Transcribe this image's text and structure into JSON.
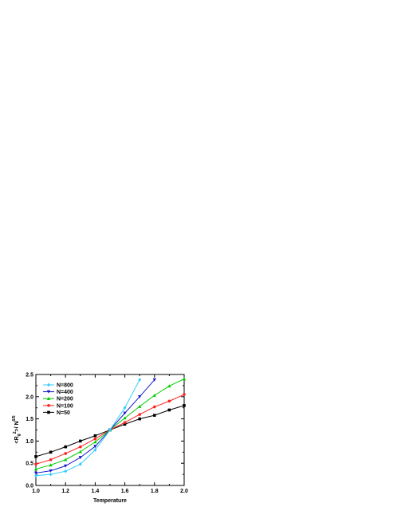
{
  "chart_data": {
    "type": "line",
    "title": "",
    "xlabel": "Temperature",
    "ylabel": "<R_g^2>/N^{6/5}",
    "ylabel_parts": {
      "open": "<R",
      "sub": "g",
      "sup1": "2",
      "mid": ">/ N",
      "sup2": "6/5"
    },
    "xlim": [
      1.0,
      2.0
    ],
    "ylim": [
      0.0,
      2.5
    ],
    "xticks": [
      "1.0",
      "1.2",
      "1.4",
      "1.6",
      "1.8",
      "2.0"
    ],
    "yticks": [
      "0.0",
      "0.5",
      "1.0",
      "1.5",
      "2.0",
      "2.5"
    ],
    "grid": false,
    "legend_position": "top-left",
    "series": [
      {
        "name": "N=800",
        "color": "#33ccff",
        "marker": "diamond",
        "x": [
          1.0,
          1.1,
          1.2,
          1.3,
          1.4,
          1.5,
          1.6,
          1.7
        ],
        "y": [
          0.22,
          0.25,
          0.32,
          0.48,
          0.8,
          1.25,
          1.75,
          2.38
        ]
      },
      {
        "name": "N=400",
        "color": "#1a1acc",
        "marker": "triangle-down",
        "x": [
          1.0,
          1.1,
          1.2,
          1.3,
          1.4,
          1.5,
          1.6,
          1.7,
          1.8
        ],
        "y": [
          0.28,
          0.33,
          0.44,
          0.63,
          0.88,
          1.25,
          1.63,
          2.0,
          2.38
        ]
      },
      {
        "name": "N=200",
        "color": "#00cc00",
        "marker": "triangle-up",
        "x": [
          1.0,
          1.1,
          1.2,
          1.3,
          1.4,
          1.5,
          1.6,
          1.7,
          1.8,
          1.9,
          2.0
        ],
        "y": [
          0.37,
          0.46,
          0.58,
          0.76,
          0.98,
          1.25,
          1.52,
          1.78,
          2.03,
          2.24,
          2.4
        ]
      },
      {
        "name": "N=100",
        "color": "#ff2222",
        "marker": "circle",
        "x": [
          1.0,
          1.1,
          1.2,
          1.3,
          1.4,
          1.5,
          1.6,
          1.7,
          1.8,
          1.9,
          2.0
        ],
        "y": [
          0.48,
          0.58,
          0.72,
          0.87,
          1.05,
          1.25,
          1.42,
          1.6,
          1.77,
          1.9,
          2.05
        ]
      },
      {
        "name": "N=50",
        "color": "#000000",
        "marker": "square",
        "x": [
          1.0,
          1.1,
          1.2,
          1.3,
          1.4,
          1.5,
          1.6,
          1.7,
          1.8,
          1.9,
          2.0
        ],
        "y": [
          0.65,
          0.75,
          0.87,
          1.0,
          1.12,
          1.25,
          1.38,
          1.5,
          1.58,
          1.7,
          1.8
        ]
      }
    ]
  }
}
